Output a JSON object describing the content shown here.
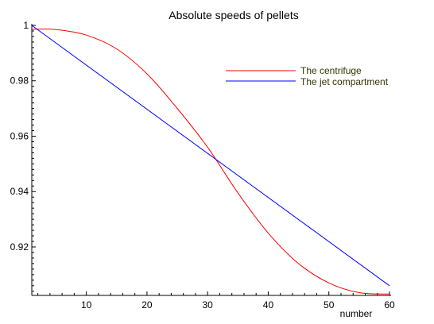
{
  "chart_data": {
    "type": "line",
    "title": "Absolute speeds of pellets",
    "xlabel": "number",
    "ylabel": "",
    "xlim": [
      1,
      60
    ],
    "ylim": [
      0.9025,
      1.0
    ],
    "x_ticks": [
      10,
      20,
      30,
      40,
      50,
      60
    ],
    "y_ticks": [
      0.92,
      0.94,
      0.96,
      0.98,
      1
    ],
    "y_tick_labels": [
      "0.92",
      "0.94",
      "0.96",
      "0.98",
      "1"
    ],
    "grid": false,
    "legend_position": "top-right",
    "series": [
      {
        "name": "The centrifuge",
        "color": "#ff0000",
        "x": [
          1,
          5,
          10,
          15,
          20,
          25,
          30,
          35,
          40,
          45,
          50,
          55,
          60
        ],
        "y": [
          0.9986,
          0.9985,
          0.9965,
          0.9915,
          0.9825,
          0.97,
          0.956,
          0.9395,
          0.925,
          0.914,
          0.907,
          0.9035,
          0.903
        ]
      },
      {
        "name": "The jet compartment",
        "color": "#0000ff",
        "x": [
          1,
          60
        ],
        "y": [
          1.0,
          0.906
        ]
      }
    ],
    "legend_text_color": "#333300"
  }
}
